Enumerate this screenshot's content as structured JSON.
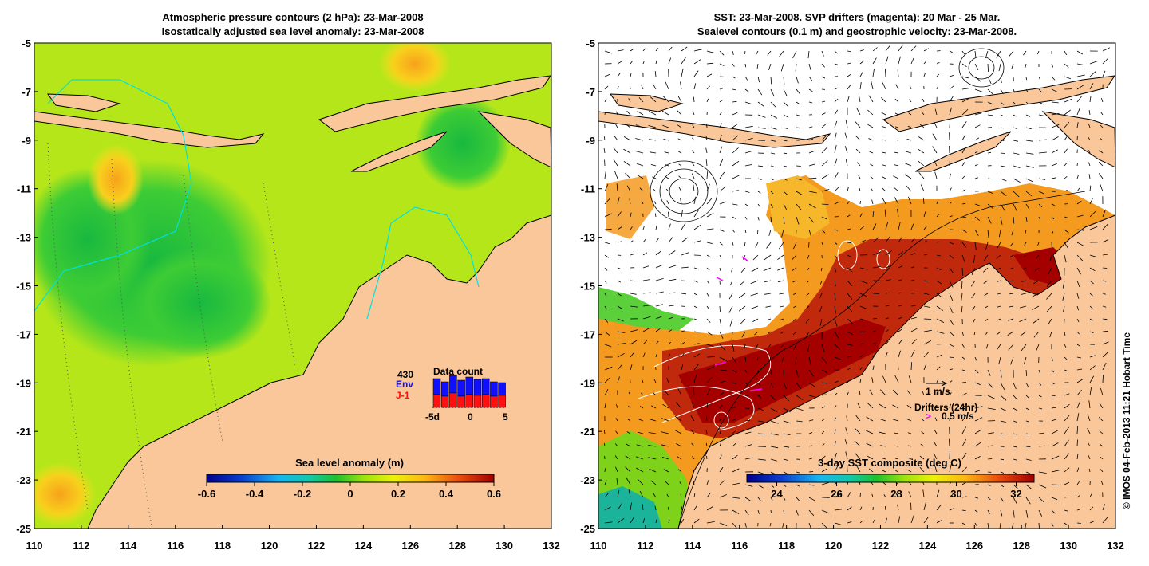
{
  "left_panel": {
    "title_line1": "Atmospheric pressure contours (2 hPa): 23-Mar-2008",
    "title_line2": "Isostatically adjusted sea level anomaly: 23-Mar-2008",
    "x_ticks": [
      "110",
      "112",
      "114",
      "116",
      "118",
      "120",
      "122",
      "124",
      "126",
      "128",
      "130",
      "132"
    ],
    "y_ticks": [
      "-5",
      "-7",
      "-9",
      "-11",
      "-13",
      "-15",
      "-17",
      "-19",
      "-21",
      "-23",
      "-25"
    ],
    "colorbar": {
      "label": "Sea level anomaly (m)",
      "ticks": [
        "-0.6",
        "-0.4",
        "-0.2",
        "0",
        "0.2",
        "0.4",
        "0.6"
      ],
      "range": [
        -0.6,
        0.6
      ]
    },
    "inset": {
      "title": "Data count",
      "max_label": "430",
      "env_label": "Env",
      "j1_label": "J-1",
      "x_ticks": [
        "-5d",
        "0",
        "5"
      ],
      "env_color": "#1010ff",
      "j1_color": "#ff1010"
    }
  },
  "right_panel": {
    "title_line1": "SST: 23-Mar-2008. SVP drifters (magenta): 20 Mar - 25 Mar.",
    "title_line2": "Sealevel contours (0.1 m) and geostrophic velocity: 23-Mar-2008.",
    "x_ticks": [
      "110",
      "112",
      "114",
      "116",
      "118",
      "120",
      "122",
      "124",
      "126",
      "128",
      "130",
      "132"
    ],
    "y_ticks": [
      "-5",
      "-7",
      "-9",
      "-11",
      "-13",
      "-15",
      "-17",
      "-19",
      "-21",
      "-23",
      "-25"
    ],
    "colorbar": {
      "label": "3-day SST composite (deg C)",
      "ticks": [
        "24",
        "26",
        "28",
        "30",
        "32"
      ],
      "range": [
        23,
        32.6
      ]
    },
    "velocity_key": "1 m/s",
    "drifters_label": "Drifters (24hr)",
    "drifter_speed": "0.5 m/s",
    "drifter_symbol": ">"
  },
  "credit": "© IMOS 04-Feb-2013 11:21 Hobart Time",
  "colors": {
    "land": "#f9c79a",
    "coast": "#000000",
    "shelf_contour": "#00e0e0",
    "drifter": "#ff00ff"
  }
}
